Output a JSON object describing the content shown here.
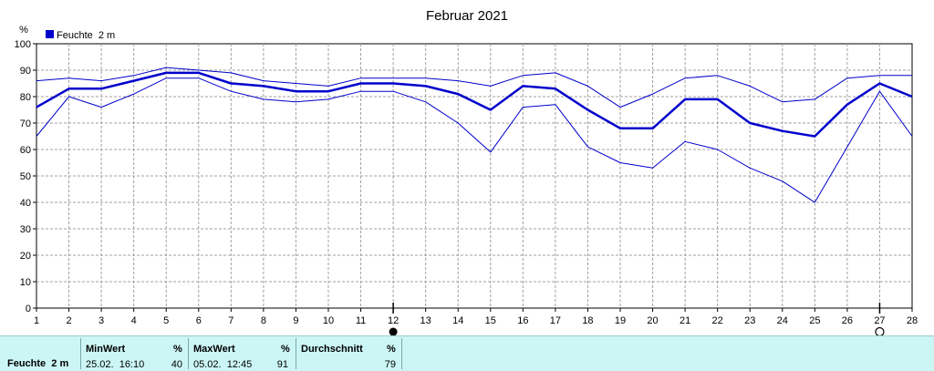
{
  "chart_data": {
    "type": "line",
    "title": "Februar 2021",
    "ylabel": "%",
    "ylim": [
      0,
      100
    ],
    "yticks": [
      0,
      10,
      20,
      30,
      40,
      50,
      60,
      70,
      80,
      90,
      100
    ],
    "x": [
      1,
      2,
      3,
      4,
      5,
      6,
      7,
      8,
      9,
      10,
      11,
      12,
      13,
      14,
      15,
      16,
      17,
      18,
      19,
      20,
      21,
      22,
      23,
      24,
      25,
      26,
      27,
      28
    ],
    "grid": true,
    "legend": "top-left",
    "series": [
      {
        "name": "Feuchte  2 m",
        "role": "average",
        "values": [
          76,
          83,
          83,
          86,
          89,
          89,
          85,
          84,
          82,
          82,
          85,
          85,
          84,
          81,
          75,
          84,
          83,
          75,
          68,
          68,
          79,
          79,
          70,
          67,
          65,
          77,
          85,
          80
        ]
      },
      {
        "role": "max",
        "values": [
          86,
          87,
          86,
          88,
          91,
          90,
          89,
          86,
          85,
          84,
          87,
          87,
          87,
          86,
          84,
          88,
          89,
          84,
          76,
          81,
          87,
          88,
          84,
          78,
          79,
          87,
          88,
          88
        ]
      },
      {
        "role": "min",
        "values": [
          65,
          80,
          76,
          81,
          87,
          87,
          82,
          79,
          78,
          79,
          82,
          82,
          78,
          70,
          59,
          76,
          77,
          61,
          55,
          53,
          63,
          60,
          53,
          48,
          40,
          61,
          82,
          65
        ]
      }
    ],
    "colors": {
      "line": "#0000cc",
      "grid": "#a0a0a0",
      "axis": "#000000"
    },
    "moon_markers": [
      {
        "day": 12,
        "phase": "new-moon"
      },
      {
        "day": 27,
        "phase": "full-moon"
      }
    ]
  },
  "footer": {
    "series_label": "Feuchte  2 m",
    "min_label": "MinWert",
    "min_unit": "%",
    "min_time": "25.02.  16:10",
    "min_value": "40",
    "max_label": "MaxWert",
    "max_unit": "%",
    "max_time": "05.02.  12:45",
    "max_value": "91",
    "avg_label": "Durchschnitt",
    "avg_unit": "%",
    "avg_value": "79"
  }
}
